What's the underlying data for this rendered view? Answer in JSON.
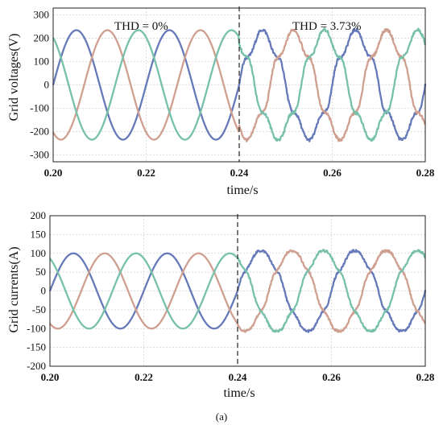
{
  "colors": {
    "phase_a": "#6679b8",
    "phase_b": "#cf9f90",
    "phase_c": "#77c0aa"
  },
  "caption": "(a)",
  "chart_data": [
    {
      "type": "line",
      "xlabel": "time/s",
      "ylabel": "Grid voltages(V)",
      "xlim": [
        0.2,
        0.28
      ],
      "ylim": [
        -330,
        330
      ],
      "xticks": [
        "0.20",
        "0.22",
        "0.24",
        "0.26",
        "0.28"
      ],
      "yticks": [
        "300",
        "200",
        "100",
        "0",
        "-100",
        "-200",
        "-300"
      ],
      "grid": true,
      "annotations": [
        "THD = 0%",
        "THD = 3.73%"
      ],
      "disturbance_time": 0.24,
      "frequency_hz": 50,
      "series": [
        {
          "amplitude_before": 235,
          "amplitude_after": 220,
          "phase_deg": 0,
          "color_key": "phase_a"
        },
        {
          "amplitude_before": 235,
          "amplitude_after": 220,
          "phase_deg": -120,
          "color_key": "phase_b"
        },
        {
          "amplitude_before": 235,
          "amplitude_after": 220,
          "phase_deg": 120,
          "color_key": "phase_c"
        }
      ]
    },
    {
      "type": "line",
      "xlabel": "time/s",
      "ylabel": "Grid currents(A)",
      "xlim": [
        0.2,
        0.28
      ],
      "ylim": [
        -200,
        200
      ],
      "xticks": [
        "0.20",
        "0.22",
        "0.24",
        "0.26",
        "0.28"
      ],
      "yticks": [
        "200",
        "150",
        "100",
        "50",
        "0",
        "-50",
        "-100",
        "-150",
        "-200"
      ],
      "grid": true,
      "disturbance_time": 0.24,
      "frequency_hz": 50,
      "series": [
        {
          "amplitude_before": 100,
          "amplitude_after": 105,
          "phase_deg": 0,
          "color_key": "phase_a"
        },
        {
          "amplitude_before": 100,
          "amplitude_after": 105,
          "phase_deg": -120,
          "color_key": "phase_b"
        },
        {
          "amplitude_before": 100,
          "amplitude_after": 105,
          "phase_deg": 120,
          "color_key": "phase_c"
        }
      ]
    }
  ]
}
